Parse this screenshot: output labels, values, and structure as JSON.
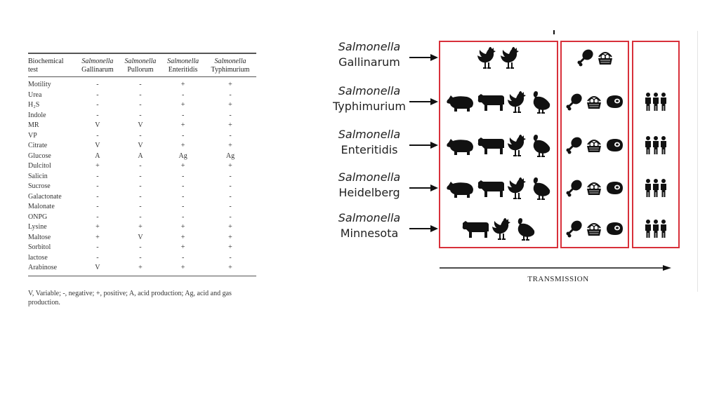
{
  "table": {
    "header": {
      "test": [
        "Biochemical",
        "test"
      ],
      "columns": [
        {
          "genus": "Salmonella",
          "serovar": "Gallinarum"
        },
        {
          "genus": "Salmonella",
          "serovar": "Pullorum"
        },
        {
          "genus": "Salmonella",
          "serovar": "Enteritidis"
        },
        {
          "genus": "Salmonella",
          "serovar": "Typhimurium"
        }
      ]
    },
    "rows": [
      {
        "test": "Motility",
        "values": [
          "-",
          "-",
          "+",
          "+"
        ]
      },
      {
        "test": "Urea",
        "values": [
          "-",
          "-",
          "-",
          "-"
        ]
      },
      {
        "test": "H₂S",
        "values": [
          "-",
          "-",
          "+",
          "+"
        ]
      },
      {
        "test": "Indole",
        "values": [
          "-",
          "-",
          "-",
          "-"
        ]
      },
      {
        "test": "MR",
        "values": [
          "V",
          "V",
          "+",
          "+"
        ]
      },
      {
        "test": "VP",
        "values": [
          "-",
          "-",
          "-",
          "-"
        ]
      },
      {
        "test": "Citrate",
        "values": [
          "V",
          "V",
          "+",
          "+"
        ]
      },
      {
        "test": "Glucose",
        "values": [
          "A",
          "A",
          "Ag",
          "Ag"
        ]
      },
      {
        "test": "Dulcitol",
        "values": [
          "+",
          "-",
          "+",
          "+"
        ]
      },
      {
        "test": "Salicin",
        "values": [
          "-",
          "-",
          "-",
          "-"
        ]
      },
      {
        "test": "Sucrose",
        "values": [
          "-",
          "-",
          "-",
          "-"
        ]
      },
      {
        "test": "Galactonate",
        "values": [
          "-",
          "-",
          "-",
          "-"
        ]
      },
      {
        "test": "Malonate",
        "values": [
          "-",
          "-",
          "-",
          "-"
        ]
      },
      {
        "test": "ONPG",
        "values": [
          "-",
          "-",
          "-",
          "-"
        ]
      },
      {
        "test": "Lysine",
        "values": [
          "+",
          "+",
          "+",
          "+"
        ]
      },
      {
        "test": "Maltose",
        "values": [
          "+",
          "V",
          "+",
          "+"
        ]
      },
      {
        "test": "Sorbitol",
        "values": [
          "-",
          "-",
          "+",
          "+"
        ]
      },
      {
        "test": "lactose",
        "values": [
          "-",
          "-",
          "-",
          "-"
        ]
      },
      {
        "test": "Arabinose",
        "values": [
          "V",
          "+",
          "+",
          "+"
        ]
      }
    ],
    "footnote": "V, Variable; -, negative; +, positive; A, acid production; Ag, acid and gas production."
  },
  "figure": {
    "species": [
      {
        "genus": "Salmonella",
        "serovar": "Gallinarum",
        "animals": [
          "chicken-icon",
          "chicken-icon"
        ],
        "foods": [
          "drumstick-icon",
          "egg-basket-icon"
        ],
        "humans": false
      },
      {
        "genus": "Salmonella",
        "serovar": "Typhimurium",
        "animals": [
          "pig-icon",
          "cow-icon",
          "chicken-icon",
          "turkey-icon"
        ],
        "foods": [
          "drumstick-icon",
          "egg-basket-icon",
          "meat-icon"
        ],
        "humans": true
      },
      {
        "genus": "Salmonella",
        "serovar": "Enteritidis",
        "animals": [
          "pig-icon",
          "cow-icon",
          "chicken-icon",
          "turkey-icon"
        ],
        "foods": [
          "drumstick-icon",
          "egg-basket-icon",
          "meat-icon"
        ],
        "humans": true
      },
      {
        "genus": "Salmonella",
        "serovar": "Heidelberg",
        "animals": [
          "pig-icon",
          "cow-icon",
          "chicken-icon",
          "turkey-icon"
        ],
        "foods": [
          "drumstick-icon",
          "egg-basket-icon",
          "meat-icon"
        ],
        "humans": true
      },
      {
        "genus": "Salmonella",
        "serovar": "Minnesota",
        "animals": [
          "cow-icon",
          "chicken-icon",
          "turkey-icon"
        ],
        "foods": [
          "drumstick-icon",
          "egg-basket-icon",
          "meat-icon"
        ],
        "humans": true
      }
    ],
    "axis_label": "TRANSMISSION",
    "box_color": "#d8303a",
    "icon_color": "#111111"
  }
}
